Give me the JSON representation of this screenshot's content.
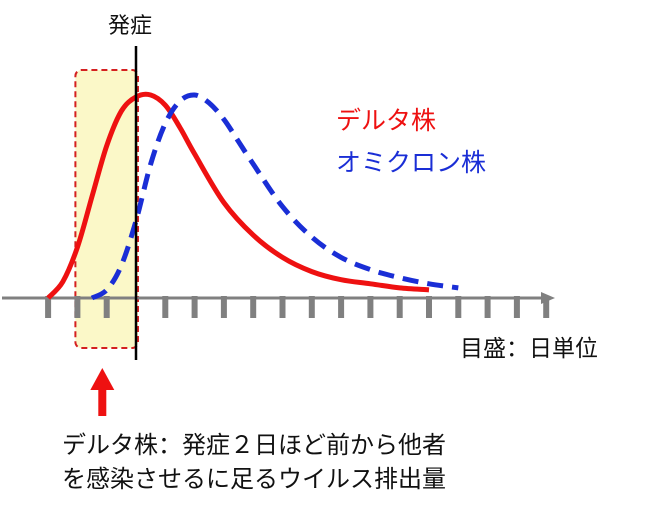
{
  "labels": {
    "onset": "発症",
    "unit": "目盛：日単位",
    "note_line1": "デルタ株：発症２日ほど前から他者",
    "note_line2": "を感染させるに足るウイルス排出量"
  },
  "colors": {
    "delta": "#ee1111",
    "omicron": "#1a2ed6",
    "highlight_fill": "#fbf8c8",
    "highlight_border": "#d42020",
    "arrow": "#ee1111",
    "axis": "#808080",
    "onset_line": "#000000"
  },
  "chart_data": {
    "type": "line",
    "title": "",
    "xlabel": "目盛：日単位",
    "ylabel": "",
    "x_unit": "day",
    "onset_day": 0,
    "highlight_range": [
      -2,
      0
    ],
    "xlim": [
      -4.5,
      14.5
    ],
    "ylim": [
      0,
      1
    ],
    "tick_days": [
      -3,
      -2,
      -1,
      0,
      1,
      2,
      3,
      4,
      5,
      6,
      7,
      8,
      9,
      10,
      11,
      12,
      13,
      14
    ],
    "series": [
      {
        "name": "デルタ株",
        "style": "solid",
        "x": [
          -3.0,
          -2.5,
          -2.0,
          -1.5,
          -1.0,
          -0.5,
          0.0,
          0.5,
          1.0,
          1.5,
          2.0,
          3.0,
          4.0,
          5.0,
          6.0,
          7.0,
          8.0,
          9.0,
          10.0
        ],
        "y": [
          0.0,
          0.08,
          0.25,
          0.5,
          0.75,
          0.92,
          0.99,
          1.0,
          0.95,
          0.84,
          0.71,
          0.47,
          0.31,
          0.2,
          0.13,
          0.09,
          0.07,
          0.05,
          0.04
        ]
      },
      {
        "name": "オミクロン株",
        "style": "dashed",
        "x": [
          -1.5,
          -1.0,
          -0.5,
          0.0,
          0.5,
          1.0,
          1.5,
          2.0,
          2.5,
          3.0,
          3.5,
          4.0,
          5.0,
          6.0,
          7.0,
          8.0,
          9.0,
          10.0,
          11.0
        ],
        "y": [
          0.0,
          0.04,
          0.16,
          0.38,
          0.66,
          0.86,
          0.97,
          1.0,
          0.96,
          0.88,
          0.77,
          0.66,
          0.45,
          0.3,
          0.2,
          0.14,
          0.1,
          0.07,
          0.05
        ]
      }
    ]
  }
}
